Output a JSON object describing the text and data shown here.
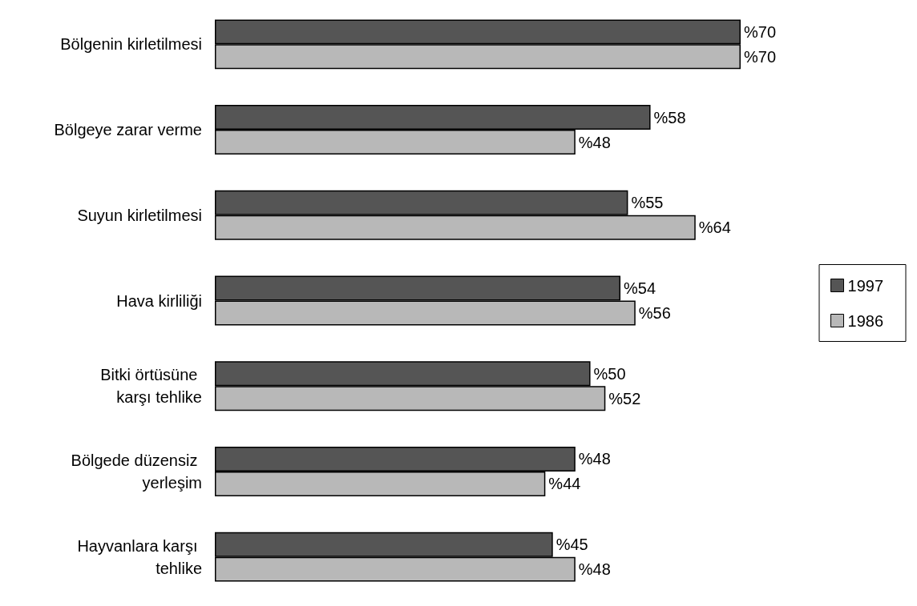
{
  "chart_data": {
    "type": "bar",
    "orientation": "horizontal",
    "categories": [
      "Bölgenin kirletilmesi",
      "Bölgeye zarar verme",
      "Suyun kirletilmesi",
      "Hava kirliliği",
      "Bitki örtüsüne karşı tehlike",
      "Bölgede düzensiz yerleşim",
      "Hayvanlara karşı tehlike"
    ],
    "series": [
      {
        "name": "1997",
        "color": "#555555",
        "values": [
          70,
          58,
          55,
          54,
          50,
          48,
          45
        ],
        "value_labels": [
          "%70",
          "%58",
          "%55",
          "%54",
          "%50",
          "%48",
          "%45"
        ]
      },
      {
        "name": "1986",
        "color": "#b8b8b8",
        "values": [
          70,
          48,
          64,
          56,
          52,
          44,
          48
        ],
        "value_labels": [
          "%70",
          "%48",
          "%64",
          "%56",
          "%52",
          "%44",
          "%48"
        ]
      }
    ],
    "legend": "right",
    "grid": false
  }
}
